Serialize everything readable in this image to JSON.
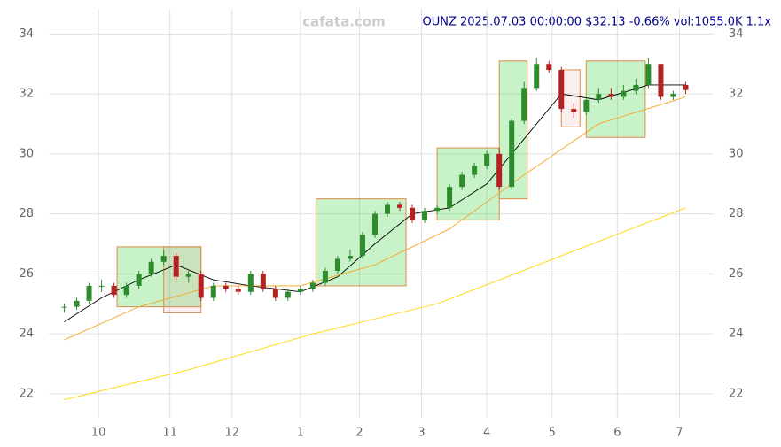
{
  "chart_data": {
    "type": "candlestick",
    "title": "OUNZ 2025.07.03 00:00:00 $32.13 -0.66% vol:1055.0K 1.1x",
    "watermark": "cafata.com",
    "x": [
      0,
      4,
      8,
      12,
      16,
      20,
      24,
      28,
      32,
      36,
      40,
      44,
      48,
      52,
      56,
      60,
      64,
      68,
      72,
      76,
      80,
      84,
      88,
      92,
      96,
      100,
      104,
      108,
      112,
      116,
      120,
      124,
      128,
      132,
      136,
      140,
      144,
      148,
      152,
      156,
      160,
      164,
      168,
      172,
      176,
      180,
      184,
      188,
      192,
      196,
      200
    ],
    "open": [
      24.9,
      24.9,
      25.1,
      25.6,
      25.6,
      25.3,
      25.6,
      26.0,
      26.4,
      26.6,
      25.9,
      26.0,
      25.2,
      25.6,
      25.5,
      25.4,
      26.0,
      25.5,
      25.2,
      25.4,
      25.5,
      25.7,
      26.1,
      26.5,
      26.6,
      27.3,
      28.0,
      28.3,
      28.2,
      27.8,
      28.1,
      28.2,
      28.9,
      29.3,
      29.6,
      30.0,
      28.9,
      31.1,
      32.2,
      33.0,
      32.8,
      31.5,
      31.4,
      31.8,
      32.0,
      31.9,
      32.1,
      32.3,
      33.0,
      31.9,
      32.3
    ],
    "high": [
      25.0,
      25.2,
      25.7,
      25.8,
      25.7,
      25.7,
      26.1,
      26.5,
      26.8,
      26.7,
      26.1,
      26.1,
      25.7,
      25.7,
      25.6,
      26.1,
      26.1,
      25.6,
      25.5,
      25.6,
      25.8,
      26.2,
      26.6,
      26.8,
      27.4,
      28.1,
      28.4,
      28.4,
      28.3,
      28.2,
      28.3,
      29.0,
      29.4,
      29.7,
      30.1,
      30.2,
      31.2,
      32.4,
      33.2,
      33.1,
      32.9,
      31.7,
      31.9,
      32.2,
      32.2,
      32.3,
      32.5,
      33.2,
      33.0,
      32.1,
      32.4
    ],
    "low": [
      24.7,
      24.8,
      25.0,
      25.4,
      25.2,
      25.2,
      25.5,
      25.9,
      26.3,
      25.8,
      25.7,
      25.1,
      25.1,
      25.4,
      25.3,
      25.3,
      25.4,
      25.1,
      25.1,
      25.3,
      25.4,
      25.6,
      26.0,
      26.4,
      26.5,
      27.2,
      27.9,
      28.1,
      27.7,
      27.7,
      28.0,
      28.1,
      28.8,
      29.2,
      29.5,
      28.8,
      28.8,
      31.0,
      32.1,
      32.7,
      31.4,
      31.2,
      31.3,
      31.7,
      31.8,
      31.8,
      32.0,
      32.2,
      31.8,
      31.8,
      32.0
    ],
    "close": [
      24.9,
      25.1,
      25.6,
      25.6,
      25.3,
      25.6,
      26.0,
      26.4,
      26.6,
      25.9,
      26.0,
      25.2,
      25.6,
      25.5,
      25.4,
      26.0,
      25.5,
      25.2,
      25.4,
      25.5,
      25.7,
      26.1,
      26.5,
      26.6,
      27.3,
      28.0,
      28.3,
      28.2,
      27.8,
      28.1,
      28.2,
      28.9,
      29.3,
      29.6,
      30.0,
      28.9,
      31.1,
      32.2,
      33.0,
      32.8,
      31.5,
      31.4,
      31.8,
      32.0,
      31.9,
      32.1,
      32.3,
      33.0,
      31.9,
      32.0,
      32.13
    ],
    "up_color": "#2e8b2e",
    "down_color": "#b22222",
    "lines": [
      {
        "color": "#000000",
        "x": [
          0,
          12,
          24,
          36,
          48,
          60,
          76,
          88,
          100,
          112,
          124,
          136,
          148,
          160,
          172,
          188,
          200
        ],
        "values": [
          24.4,
          25.2,
          25.8,
          26.3,
          25.8,
          25.6,
          25.4,
          25.9,
          27.0,
          28.0,
          28.2,
          29.0,
          30.5,
          32.0,
          31.8,
          32.3,
          32.3
        ]
      },
      {
        "color": "#f5a623",
        "x": [
          0,
          24,
          48,
          76,
          100,
          124,
          148,
          172,
          200
        ],
        "values": [
          23.8,
          24.9,
          25.6,
          25.6,
          26.3,
          27.5,
          29.3,
          31.0,
          31.9
        ]
      },
      {
        "color": "#ffd700",
        "x": [
          0,
          40,
          80,
          120,
          160,
          200
        ],
        "values": [
          21.8,
          22.8,
          24.0,
          25.0,
          26.6,
          28.2
        ]
      }
    ],
    "boxes": [
      {
        "x": [
          17,
          44
        ],
        "y": [
          24.9,
          26.9
        ],
        "color": "#22cc22"
      },
      {
        "x": [
          32,
          44
        ],
        "y": [
          24.7,
          26.9
        ],
        "color": "#dd6666"
      },
      {
        "x": [
          81,
          110
        ],
        "y": [
          25.6,
          28.5
        ],
        "color": "#22cc22"
      },
      {
        "x": [
          120,
          140
        ],
        "y": [
          27.8,
          30.2
        ],
        "color": "#22cc22"
      },
      {
        "x": [
          140,
          149
        ],
        "y": [
          28.5,
          33.1
        ],
        "color": "#22cc22"
      },
      {
        "x": [
          160,
          166
        ],
        "y": [
          30.9,
          32.8
        ],
        "color": "#dd6666"
      },
      {
        "x": [
          168,
          187
        ],
        "y": [
          30.55,
          33.1
        ],
        "color": "#22cc22"
      }
    ],
    "xlim": [
      -5,
      209
    ],
    "xticks": [
      {
        "value": 11,
        "label": "10"
      },
      {
        "value": 34,
        "label": "11"
      },
      {
        "value": 54,
        "label": "12"
      },
      {
        "value": 76,
        "label": "1"
      },
      {
        "value": 95,
        "label": "2"
      },
      {
        "value": 115,
        "label": "3"
      },
      {
        "value": 136,
        "label": "4"
      },
      {
        "value": 157,
        "label": "5"
      },
      {
        "value": 178,
        "label": "6"
      },
      {
        "value": 198,
        "label": "7"
      }
    ],
    "ylim": [
      21.2,
      34.6
    ],
    "yticks": [
      22,
      24,
      26,
      28,
      30,
      32,
      34
    ],
    "grid": true
  }
}
